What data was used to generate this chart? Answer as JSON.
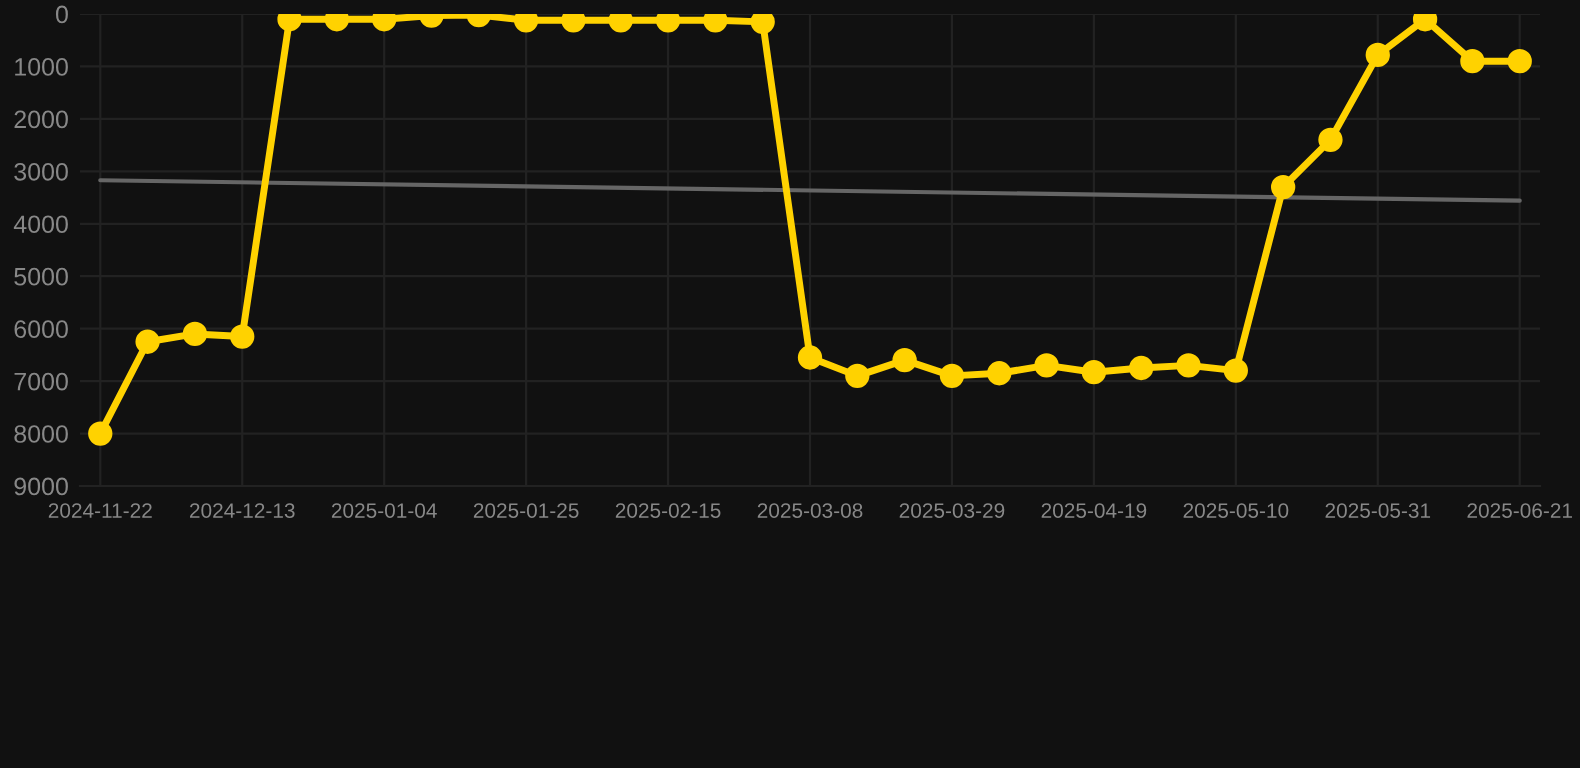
{
  "chart_data": {
    "type": "line",
    "x": [
      "2024-11-22",
      "2024-11-29",
      "2024-12-06",
      "2024-12-13",
      "2024-12-20",
      "2024-12-27",
      "2025-01-03",
      "2025-01-10",
      "2025-01-17",
      "2025-01-24",
      "2025-01-31",
      "2025-02-07",
      "2025-02-14",
      "2025-02-21",
      "2025-02-28",
      "2025-03-07",
      "2025-03-14",
      "2025-03-21",
      "2025-03-28",
      "2025-04-04",
      "2025-04-11",
      "2025-04-18",
      "2025-04-25",
      "2025-05-02",
      "2025-05-09",
      "2025-05-16",
      "2025-05-23",
      "2025-05-30",
      "2025-06-06",
      "2025-06-13",
      "2025-06-20"
    ],
    "series": [
      {
        "color": "#ffd200",
        "values": [
          8000,
          6250,
          6100,
          6150,
          100,
          100,
          100,
          30,
          20,
          120,
          120,
          120,
          120,
          120,
          150,
          6550,
          6900,
          6600,
          6900,
          6850,
          6700,
          6830,
          6750,
          6700,
          6800,
          3300,
          2400,
          780,
          100,
          900,
          900
        ]
      },
      {
        "color": "#666666",
        "marker": "none",
        "x": [
          "2024-11-22",
          "2025-06-20"
        ],
        "values": [
          3170,
          3560
        ]
      }
    ],
    "ylim": [
      9000,
      0
    ],
    "yticks": [
      0,
      1000,
      2000,
      3000,
      4000,
      5000,
      6000,
      7000,
      8000,
      9000
    ],
    "xlim": [
      "2024-11-19",
      "2025-06-23"
    ],
    "xticks": [
      {
        "value": "2024-11-22",
        "label": "2024-11-22"
      },
      {
        "value": "2024-12-13",
        "label": "2024-12-13"
      },
      {
        "value": "2025-01-03",
        "label": "2025-01-04"
      },
      {
        "value": "2025-01-24",
        "label": "2025-01-25"
      },
      {
        "value": "2025-02-14",
        "label": "2025-02-15"
      },
      {
        "value": "2025-03-07",
        "label": "2025-03-08"
      },
      {
        "value": "2025-03-28",
        "label": "2025-03-29"
      },
      {
        "value": "2025-04-18",
        "label": "2025-04-19"
      },
      {
        "value": "2025-05-09",
        "label": "2025-05-10"
      },
      {
        "value": "2025-05-30",
        "label": "2025-05-31"
      },
      {
        "value": "2025-06-20",
        "label": "2025-06-21"
      }
    ],
    "grid": true,
    "marker": "circle",
    "line_style": "solid"
  }
}
